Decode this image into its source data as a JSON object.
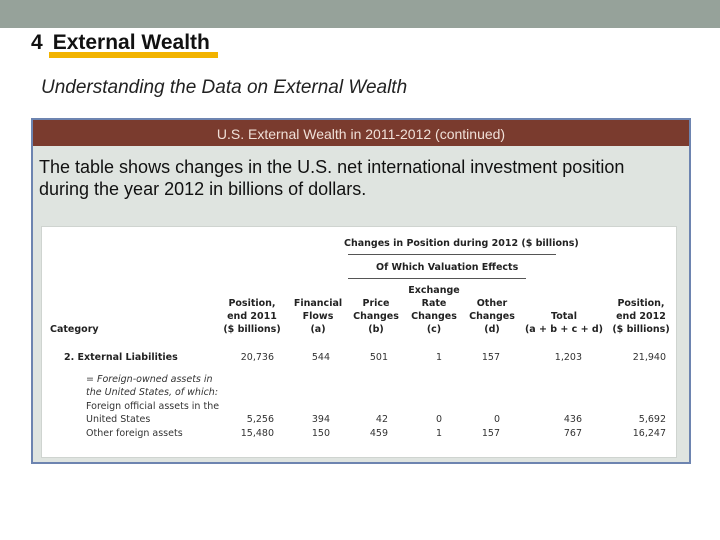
{
  "header": {
    "section_number": "4",
    "section_title": "External Wealth",
    "subtitle": "Understanding the Data on External Wealth"
  },
  "panel": {
    "title": "U.S. External Wealth in 2011-2012 (continued)",
    "body": "The table shows changes in the U.S. net international investment position during the year 2012 in billions of dollars."
  },
  "table": {
    "changes_header": "Changes in Position during 2012 ($ billions)",
    "valuation_header": "Of Which Valuation Effects",
    "columns": {
      "category": "Category",
      "pos2011": [
        "Position,",
        "end 2011",
        "($ billions)"
      ],
      "flows": [
        "Financial",
        "Flows",
        "(a)"
      ],
      "price": [
        "Price",
        "Changes",
        "(b)"
      ],
      "exchange": [
        "Exchange",
        "Rate",
        "Changes",
        "(c)"
      ],
      "other": [
        "Other",
        "Changes",
        "(d)"
      ],
      "total": [
        "Total",
        "(a + b + c + d)"
      ],
      "pos2012": [
        "Position,",
        "end 2012",
        "($ billions)"
      ]
    },
    "rows": [
      {
        "label": "2. External Liabilities",
        "values": [
          "20,736",
          "544",
          "501",
          "1",
          "157",
          "1,203",
          "21,940"
        ]
      },
      {
        "label_lines": [
          "= Foreign-owned assets in",
          "the United States, of which:"
        ]
      },
      {
        "label_lines": [
          "Foreign official assets in the",
          "United States"
        ],
        "values": [
          "5,256",
          "394",
          "42",
          "0",
          "0",
          "436",
          "5,692"
        ]
      },
      {
        "label": "Other foreign assets",
        "values": [
          "15,480",
          "150",
          "459",
          "1",
          "157",
          "767",
          "16,247"
        ]
      }
    ]
  },
  "colors": {
    "top_band": "#96a29a",
    "highlight": "#f2b300",
    "panel_header": "#7a3b2e",
    "panel_border": "#6d84b0"
  }
}
